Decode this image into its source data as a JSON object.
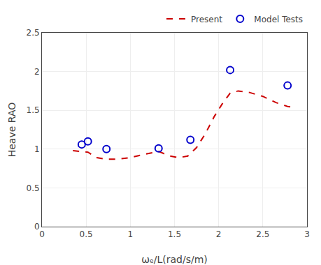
{
  "chart_data": {
    "type": "line",
    "xlabel": "ωₑ/L(rad/s/m)",
    "ylabel": "Heave RAO",
    "series": [
      {
        "name": "Present",
        "type": "line",
        "color": "#CC0000",
        "line_style": "dashed",
        "x": [
          0.35,
          0.43,
          0.52,
          0.62,
          0.73,
          0.85,
          1.0,
          1.15,
          1.32,
          1.45,
          1.55,
          1.65,
          1.75,
          1.85,
          1.95,
          2.05,
          2.13,
          2.22,
          2.35,
          2.5,
          2.65,
          2.78,
          2.88
        ],
        "values": [
          0.98,
          0.97,
          0.96,
          0.89,
          0.87,
          0.87,
          0.89,
          0.93,
          0.97,
          0.91,
          0.89,
          0.91,
          1.02,
          1.2,
          1.42,
          1.6,
          1.72,
          1.75,
          1.73,
          1.68,
          1.6,
          1.55,
          1.53
        ]
      },
      {
        "name": "Model Tests",
        "type": "scatter",
        "color": "#0000CC",
        "marker": "circle-open",
        "x": [
          0.45,
          0.52,
          0.73,
          1.32,
          1.68,
          2.13,
          2.78
        ],
        "values": [
          1.06,
          1.1,
          1.0,
          1.01,
          1.12,
          2.02,
          1.82
        ]
      }
    ],
    "xlim": [
      0,
      3
    ],
    "ylim": [
      0,
      2.5
    ],
    "xticks": [
      0,
      0.5,
      1,
      1.5,
      2,
      2.5,
      3
    ],
    "yticks": [
      0,
      0.5,
      1,
      1.5,
      2,
      2.5
    ],
    "grid": true,
    "legend": "upper right"
  }
}
